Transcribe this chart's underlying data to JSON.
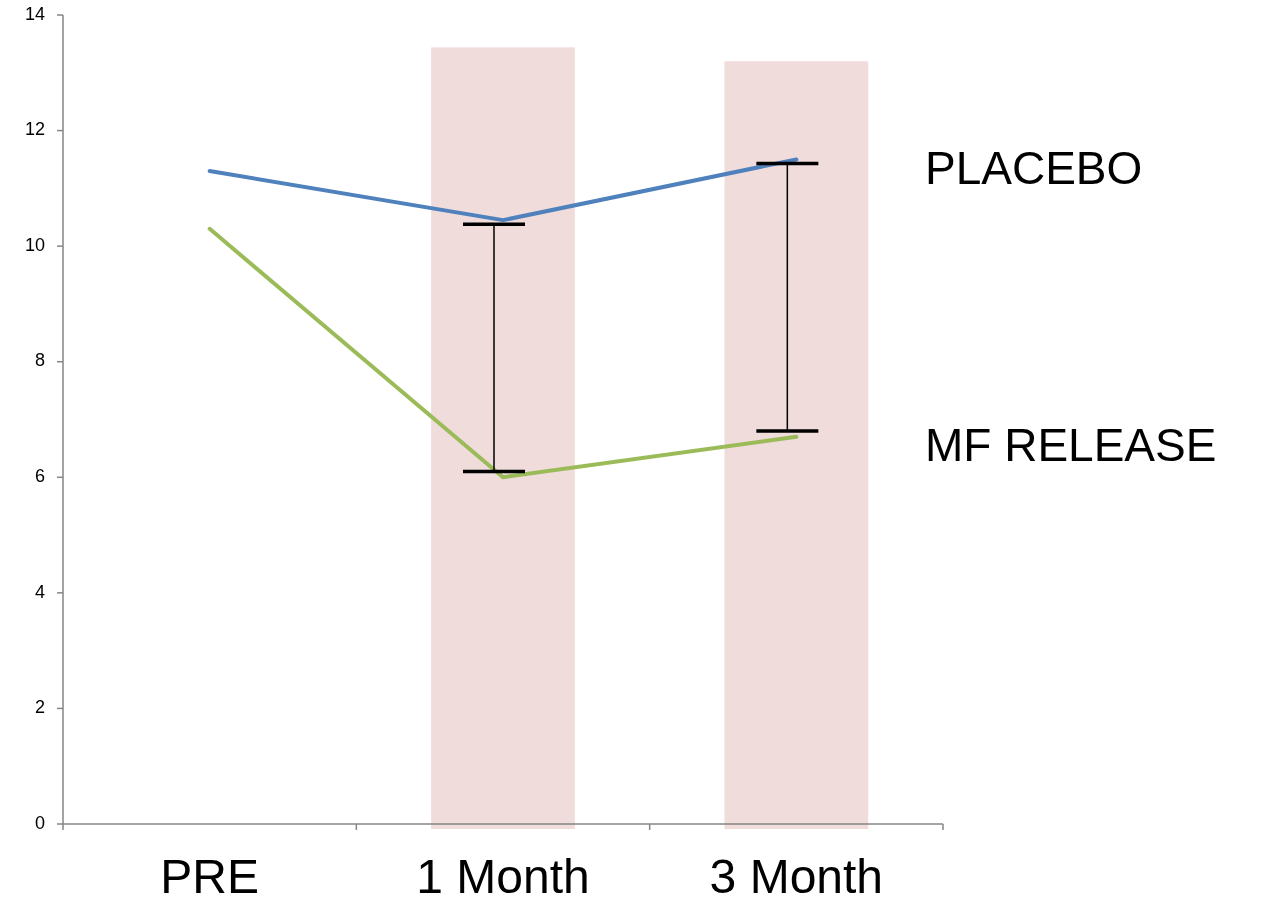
{
  "chart_data": {
    "type": "line",
    "categories": [
      "PRE",
      "1 Month",
      "3 Month"
    ],
    "series": [
      {
        "type": "bar",
        "color": "#f0dcdb",
        "values": [
          null,
          13.44,
          13.2
        ]
      },
      {
        "name": "PLACEBO",
        "color": "#4f81bd",
        "values": [
          11.3,
          10.45,
          11.5
        ]
      },
      {
        "name": "MF RELEASE",
        "color": "#9bbb59",
        "values": [
          10.3,
          6.0,
          6.7
        ]
      }
    ],
    "ylim": [
      0,
      14
    ],
    "yticks": [
      0,
      2,
      4,
      6,
      8,
      10,
      12,
      14
    ],
    "grid": false,
    "marker": "none",
    "line_style": "solid"
  }
}
